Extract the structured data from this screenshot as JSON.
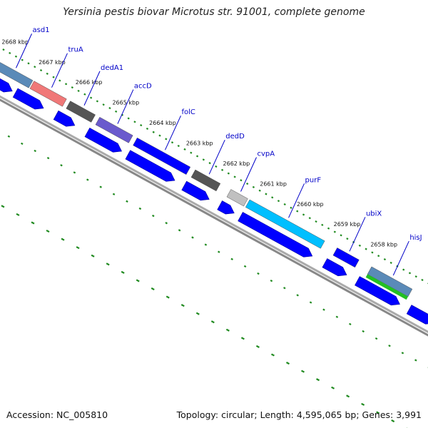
{
  "title": "Yersinia pestis biovar Microtus str. 91001, complete genome",
  "accession": "Accession: NC_005810",
  "summary": "Topology: circular; Length: 4,595,065 bp; Genes: 3,991",
  "colors": {
    "cds_arrow": "#0000ff",
    "backbone": "#888888",
    "gc_dots": "#1f8a1f",
    "gene_label": "#0000c8"
  },
  "kbp_ticks": [
    "2668 kbp",
    "2667 kbp",
    "2666 kbp",
    "2665 kbp",
    "2664 kbp",
    "2663 kbp",
    "2662 kbp",
    "2661 kbp",
    "2660 kbp",
    "2659 kbp",
    "2658 kbp"
  ],
  "genes": [
    {
      "name": "asd1",
      "color": "#5a8ab8"
    },
    {
      "name": "truA",
      "color": "#f07878"
    },
    {
      "name": "dedA1",
      "color": "#555555"
    },
    {
      "name": "accD",
      "color": "#6a5acd"
    },
    {
      "name": "folC",
      "color": "#0000ff"
    },
    {
      "name": "dedD",
      "color": "#555555"
    },
    {
      "name": "cvpA",
      "color": "#c0c0c0"
    },
    {
      "name": "purF",
      "color": "#00bfff"
    },
    {
      "name": "ubiX",
      "color": "#0000ff"
    },
    {
      "name": "hisJ",
      "color": "#5a8ab8"
    }
  ]
}
